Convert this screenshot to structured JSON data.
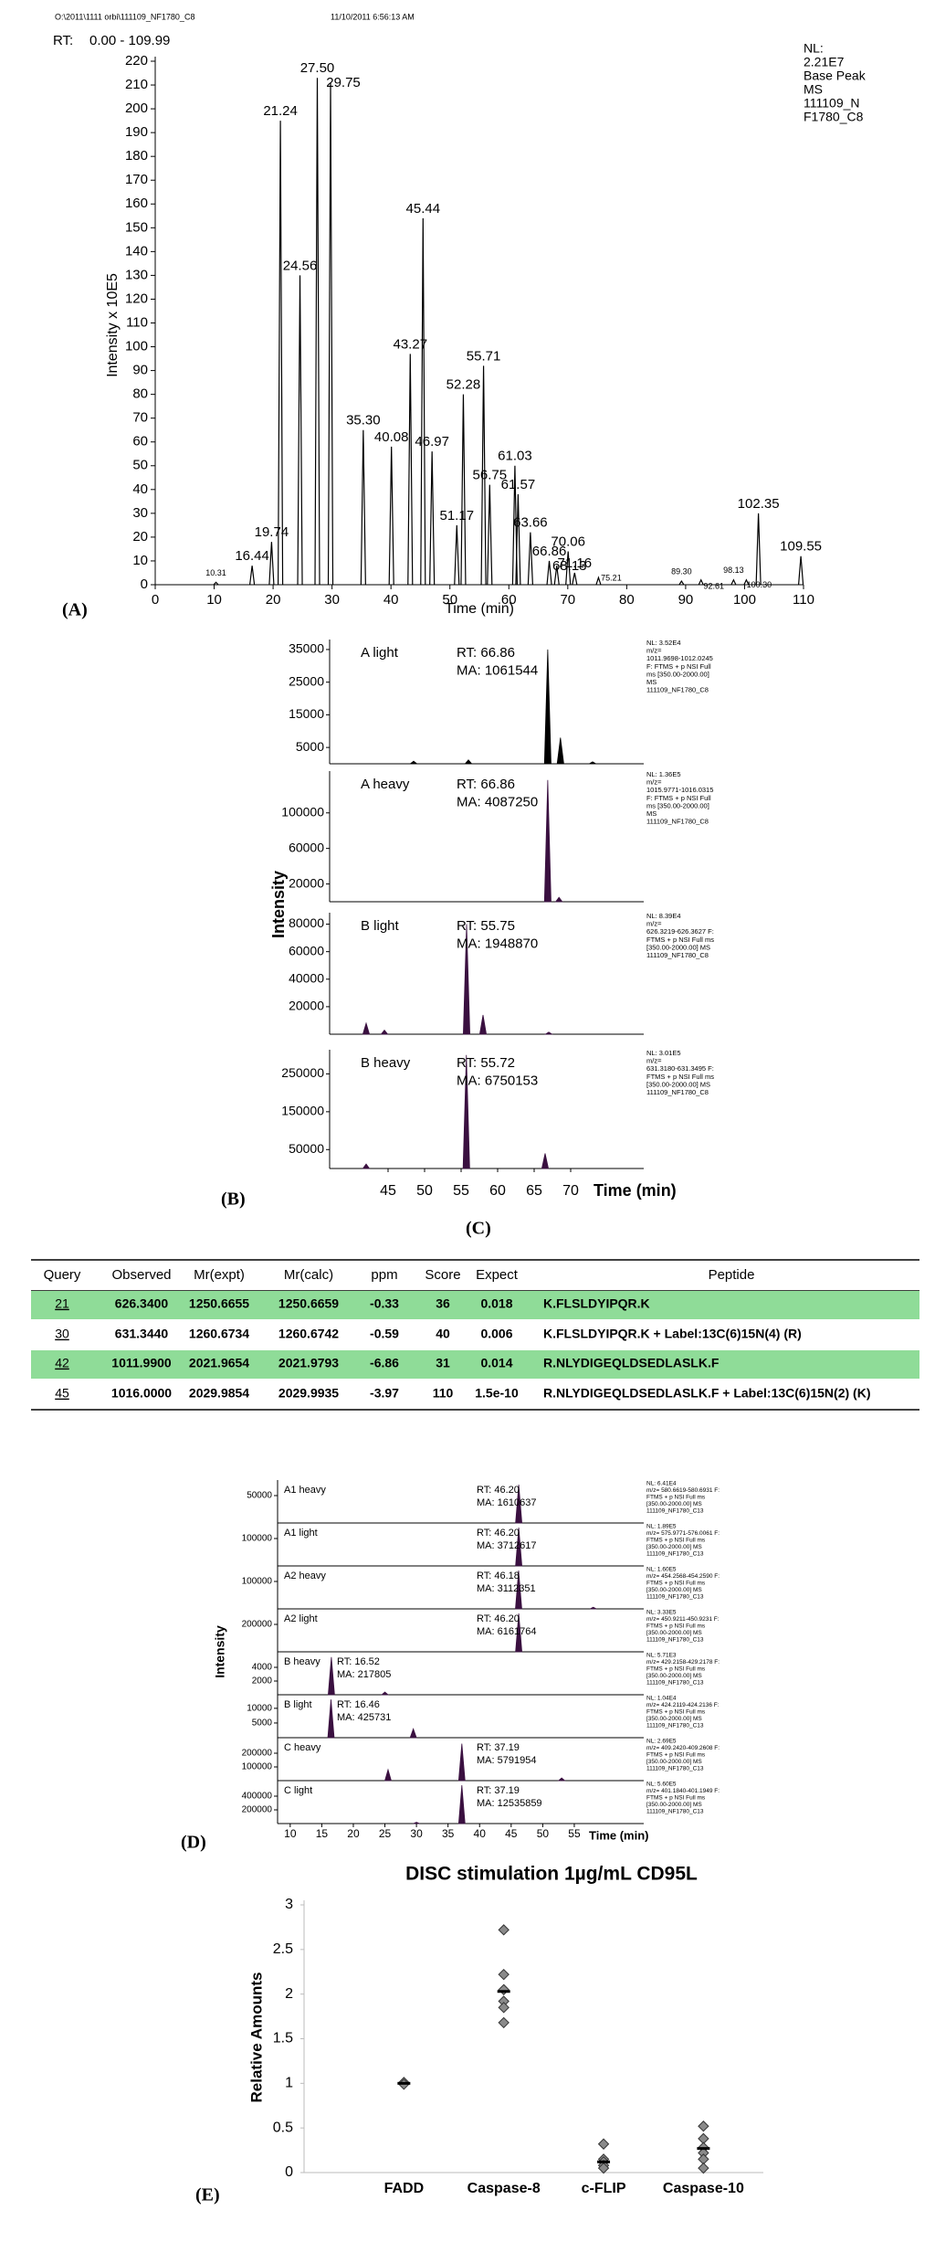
{
  "chart_data": [
    {
      "type": "line",
      "panel_label": "(A)",
      "file": "O:\\2011\\1111 orbi\\111109_NF1780_C8",
      "date": "11/10/2011 6:56:13 AM",
      "rt_prefix": "RT:",
      "rt_range": "0.00 - 109.99",
      "nl": [
        "NL:",
        "2.21E7",
        "Base Peak",
        "MS",
        "111109_N",
        "F1780_C8"
      ],
      "x_label": "Time (min)",
      "y_label": "Intensity x 10E5",
      "xlim": [
        0,
        110
      ],
      "ylim": [
        0,
        220
      ],
      "xticks": [
        0,
        10,
        20,
        30,
        40,
        50,
        60,
        70,
        80,
        90,
        100,
        110
      ],
      "yticks": [
        0,
        10,
        20,
        30,
        40,
        50,
        60,
        70,
        80,
        90,
        100,
        110,
        120,
        130,
        140,
        150,
        160,
        170,
        180,
        190,
        200,
        210,
        220
      ],
      "color": "#000000",
      "peaks": [
        {
          "x": 10.31,
          "label": "10.31",
          "y": 1
        },
        {
          "x": 16.44,
          "label": "16.44",
          "y": 8
        },
        {
          "x": 19.74,
          "label": "19.74",
          "y": 18
        },
        {
          "x": 21.24,
          "label": "21.24",
          "y": 195
        },
        {
          "x": 24.56,
          "label": "24.56",
          "y": 130
        },
        {
          "x": 27.5,
          "label": "27.50",
          "y": 213
        },
        {
          "x": 29.75,
          "label": "29.75",
          "y": 211
        },
        {
          "x": 35.3,
          "label": "35.30",
          "y": 65
        },
        {
          "x": 40.08,
          "label": "40.08",
          "y": 58
        },
        {
          "x": 43.27,
          "label": "43.27",
          "y": 97
        },
        {
          "x": 45.44,
          "label": "45.44",
          "y": 154
        },
        {
          "x": 46.97,
          "label": "46.97",
          "y": 56
        },
        {
          "x": 51.17,
          "label": "51.17",
          "y": 25
        },
        {
          "x": 52.28,
          "label": "52.28",
          "y": 80
        },
        {
          "x": 55.71,
          "label": "55.71",
          "y": 92
        },
        {
          "x": 56.75,
          "label": "56.75",
          "y": 42
        },
        {
          "x": 61.03,
          "label": "61.03",
          "y": 50
        },
        {
          "x": 61.57,
          "label": "61.57",
          "y": 38
        },
        {
          "x": 63.66,
          "label": "63.66",
          "y": 22
        },
        {
          "x": 66.86,
          "label": "66.86",
          "y": 10
        },
        {
          "x": 68.13,
          "label": "68.13",
          "y": 8
        },
        {
          "x": 70.06,
          "label": "70.06",
          "y": 14
        },
        {
          "x": 71.16,
          "label": "71.16",
          "y": 5
        },
        {
          "x": 75.21,
          "label": "75.21",
          "y": 3
        },
        {
          "x": 89.3,
          "label": "89.30",
          "y": 1.5
        },
        {
          "x": 92.61,
          "label": "92.61",
          "y": 2
        },
        {
          "x": 98.13,
          "label": "98.13",
          "y": 2
        },
        {
          "x": 100.3,
          "label": "100.30",
          "y": 2
        },
        {
          "x": 102.35,
          "label": "102.35",
          "y": 30
        },
        {
          "x": 109.55,
          "label": "109.55",
          "y": 12
        }
      ]
    },
    {
      "type": "traces",
      "panel_labels": [
        "(B)",
        "(C)"
      ],
      "x_label": "Time (min)",
      "y_label": "Intensity",
      "xlim": [
        37,
        80
      ],
      "xticks": [
        45,
        50,
        55,
        60,
        65,
        70
      ],
      "traces": [
        {
          "label": "A light",
          "rt": "RT: 66.86",
          "ma": "MA: 1061544",
          "color": "#000000",
          "nl": [
            "NL: 3.52E4",
            "m/z=",
            "1011.9698-1012.0245",
            "F: FTMS + p NSI Full",
            "ms [350.00-2000.00]",
            "MS",
            "111109_NF1780_C8"
          ],
          "ylim": [
            0,
            37500
          ],
          "yticks": [
            5000,
            15000,
            25000,
            35000
          ],
          "peaks": [
            {
              "x": 48.5,
              "y": 800
            },
            {
              "x": 56,
              "y": 1200
            },
            {
              "x": 66.86,
              "y": 35000
            },
            {
              "x": 68.6,
              "y": 8000
            },
            {
              "x": 73,
              "y": 600
            }
          ]
        },
        {
          "label": "A heavy",
          "rt": "RT: 66.86",
          "ma": "MA: 4087250",
          "color": "#3a1040",
          "nl": [
            "NL: 1.36E5",
            "m/z=",
            "1015.9771-1016.0315",
            "F: FTMS + p NSI Full",
            "ms [350.00-2000.00]",
            "MS",
            "111109_NF1780_C8"
          ],
          "ylim": [
            0,
            145000
          ],
          "yticks": [
            20000,
            60000,
            100000
          ],
          "peaks": [
            {
              "x": 66.86,
              "y": 137000
            },
            {
              "x": 68.4,
              "y": 5000
            }
          ]
        },
        {
          "label": "B light",
          "rt": "RT: 55.75",
          "ma": "MA: 1948870",
          "color": "#3a1040",
          "nl": [
            "NL: 8.39E4",
            "m/z=",
            "626.3219-626.3627 F:",
            "FTMS + p NSI Full ms",
            "[350.00-2000.00] MS",
            "111109_NF1780_C8"
          ],
          "ylim": [
            0,
            87000
          ],
          "yticks": [
            20000,
            40000,
            60000,
            80000
          ],
          "peaks": [
            {
              "x": 42,
              "y": 8000
            },
            {
              "x": 44.5,
              "y": 3000
            },
            {
              "x": 55.75,
              "y": 80000
            },
            {
              "x": 58,
              "y": 14000
            },
            {
              "x": 67,
              "y": 1500
            }
          ]
        },
        {
          "label": "B heavy",
          "rt": "RT: 55.72",
          "ma": "MA: 6750153",
          "color": "#3a1040",
          "nl": [
            "NL: 3.01E5",
            "m/z=",
            "631.3180-631.3495 F:",
            "FTMS + p NSI Full ms",
            "[350.00-2000.00] MS",
            "111109_NF1780_C8"
          ],
          "ylim": [
            0,
            309000
          ],
          "yticks": [
            50000,
            150000,
            250000
          ],
          "peaks": [
            {
              "x": 42,
              "y": 12000
            },
            {
              "x": 55.72,
              "y": 300000
            },
            {
              "x": 66.5,
              "y": 40000
            }
          ]
        }
      ]
    },
    {
      "type": "traces",
      "panel_labels": [
        "(D)"
      ],
      "x_label": "Time (min)",
      "y_label": "Intensity",
      "xlim": [
        8,
        66
      ],
      "xticks": [
        10,
        15,
        20,
        25,
        30,
        35,
        40,
        45,
        50,
        55
      ],
      "traces": [
        {
          "label": "A1 heavy",
          "rt": "RT: 46.20",
          "ma": "MA: 1610637",
          "color": "#3a1040",
          "nl": [
            "NL: 6.41E4",
            "m/z= 580.6619-580.6931 F:",
            "FTMS + p NSI Full ms",
            "[350.00-2000.00] MS",
            "111109_NF1780_C13"
          ],
          "ylim": [
            0,
            75000
          ],
          "yticks": [
            50000
          ],
          "peaks": [
            {
              "x": 46.2,
              "y": 70000
            }
          ]
        },
        {
          "label": "A1 light",
          "rt": "RT: 46.20",
          "ma": "MA: 3712617",
          "color": "#3a1040",
          "nl": [
            "NL: 1.89E5",
            "m/z= 575.9771-576.0061 F:",
            "FTMS + p NSI Full ms",
            "[350.00-2000.00] MS",
            "111109_NF1780_C13"
          ],
          "ylim": [
            0,
            150000
          ],
          "yticks": [
            100000
          ],
          "peaks": [
            {
              "x": 46.2,
              "y": 140000
            }
          ]
        },
        {
          "label": "A2 heavy",
          "rt": "RT: 46.18",
          "ma": "MA: 3112351",
          "color": "#3a1040",
          "nl": [
            "NL: 1.60E5",
            "m/z= 454.2568-454.2590 F:",
            "FTMS + p NSI Full ms",
            "[350.00-2000.00] MS",
            "111109_NF1780_C13"
          ],
          "ylim": [
            0,
            150000
          ],
          "yticks": [
            100000
          ],
          "peaks": [
            {
              "x": 46.18,
              "y": 140000
            },
            {
              "x": 58,
              "y": 6000
            }
          ]
        },
        {
          "label": "A2 light",
          "rt": "RT: 46.20",
          "ma": "MA: 6161764",
          "color": "#3a1040",
          "nl": [
            "NL: 3.33E5",
            "m/z= 450.9211-450.9231 F:",
            "FTMS + p NSI Full ms",
            "[350.00-2000.00] MS",
            "111109_NF1780_C13"
          ],
          "ylim": [
            0,
            300000
          ],
          "yticks": [
            200000
          ],
          "peaks": [
            {
              "x": 46.2,
              "y": 280000
            }
          ]
        },
        {
          "label": "B heavy",
          "rt": "RT: 16.52",
          "ma": "MA: 217805",
          "color": "#3a1040",
          "nl": [
            "NL: 5.71E3",
            "m/z= 429.2158-429.2178 F:",
            "FTMS + p NSI Full ms",
            "[350.00-2000.00] MS",
            "111109_NF1780_C13"
          ],
          "ylim": [
            0,
            6000
          ],
          "yticks": [
            2000,
            4000
          ],
          "peaks": [
            {
              "x": 16.52,
              "y": 5500
            },
            {
              "x": 25,
              "y": 400
            }
          ]
        },
        {
          "label": "B light",
          "rt": "RT: 16.46",
          "ma": "MA: 425731",
          "color": "#3a1040",
          "nl": [
            "NL: 1.04E4",
            "m/z= 424.2119-424.2136 F:",
            "FTMS + p NSI Full ms",
            "[350.00-2000.00] MS",
            "111109_NF1780_C13"
          ],
          "ylim": [
            0,
            14000
          ],
          "yticks": [
            5000,
            10000
          ],
          "peaks": [
            {
              "x": 16.46,
              "y": 13000
            },
            {
              "x": 29.5,
              "y": 3000
            }
          ]
        },
        {
          "label": "C heavy",
          "rt": "RT: 37.19",
          "ma": "MA: 5791954",
          "color": "#3a1040",
          "nl": [
            "NL: 2.69E5",
            "m/z= 409.2420-409.2608 F:",
            "FTMS + p NSI Full ms",
            "[350.00-2000.00] MS",
            "111109_NF1780_C13"
          ],
          "ylim": [
            0,
            300000
          ],
          "yticks": [
            100000,
            200000
          ],
          "peaks": [
            {
              "x": 25.5,
              "y": 80000
            },
            {
              "x": 37.19,
              "y": 270000
            },
            {
              "x": 53,
              "y": 20000
            }
          ]
        },
        {
          "label": "C light",
          "rt": "RT: 37.19",
          "ma": "MA: 12535859",
          "color": "#3a1040",
          "nl": [
            "NL: 5.60E5",
            "m/z= 401.1840-401.1949 F:",
            "FTMS + p NSI Full ms",
            "[350.00-2000.00] MS",
            "111109_NF1780_C13"
          ],
          "ylim": [
            0,
            600000
          ],
          "yticks": [
            200000,
            400000
          ],
          "peaks": [
            {
              "x": 30,
              "y": 20000
            },
            {
              "x": 37.19,
              "y": 560000
            }
          ]
        }
      ]
    },
    {
      "type": "dot",
      "panel_label": "(E)",
      "title": "DISC stimulation 1µg/mL CD95L",
      "y_label": "Relative Amounts",
      "categories": [
        "FADD",
        "Caspase-8",
        "c-FLIP",
        "Caspase-10"
      ],
      "ylim": [
        0,
        3
      ],
      "yticks": [
        0,
        0.5,
        1,
        1.5,
        2,
        2.5,
        3
      ],
      "color": "#8a8a8a",
      "points": [
        [
          1.0,
          1.0,
          1.01,
          0.99
        ],
        [
          2.72,
          2.22,
          2.05,
          1.92,
          1.85,
          1.68
        ],
        [
          0.32,
          0.15,
          0.12,
          0.08,
          0.05
        ],
        [
          0.52,
          0.38,
          0.28,
          0.22,
          0.15,
          0.05
        ]
      ],
      "means": [
        1.0,
        2.03,
        0.12,
        0.27
      ]
    }
  ],
  "table": {
    "columns": [
      "Query",
      "Observed",
      "Mr(expt)",
      "Mr(calc)",
      "ppm",
      "Score",
      "Expect",
      "Peptide"
    ],
    "rows": [
      [
        "21",
        "626.3400",
        "1250.6655",
        "1250.6659",
        "-0.33",
        "36",
        "0.018",
        "K.FLSLDYIPQR.K"
      ],
      [
        "30",
        "631.3440",
        "1260.6734",
        "1260.6742",
        "-0.59",
        "40",
        "0.006",
        "K.FLSLDYIPQR.K + Label:13C(6)15N(4) (R)"
      ],
      [
        "42",
        "1011.9900",
        "2021.9654",
        "2021.9793",
        "-6.86",
        "31",
        "0.014",
        "R.NLYDIGEQLDSEDLASLK.F"
      ],
      [
        "45",
        "1016.0000",
        "2029.9854",
        "2029.9935",
        "-3.97",
        "110",
        "1.5e-10",
        "R.NLYDIGEQLDSEDLASLK.F + Label:13C(6)15N(2) (K)"
      ]
    ],
    "highlight": [
      true,
      false,
      true,
      false
    ]
  }
}
